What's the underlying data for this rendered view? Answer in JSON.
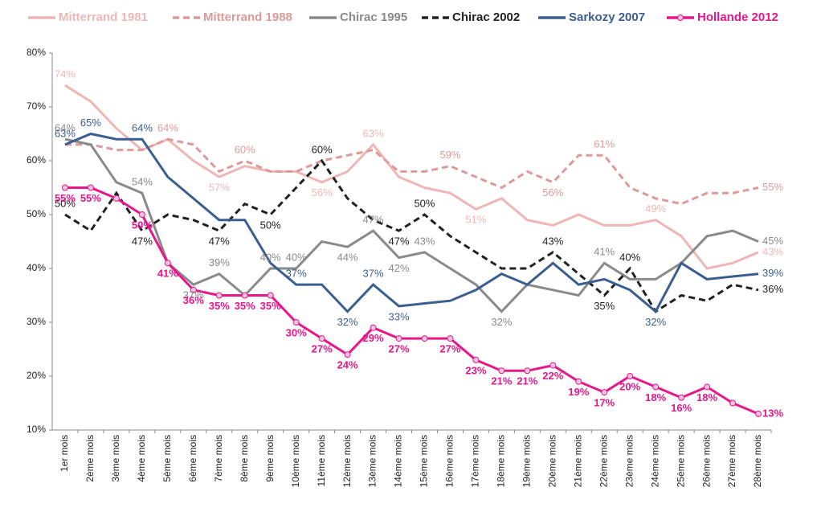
{
  "chart_data": {
    "type": "line",
    "categories": [
      "1er mois",
      "2ème mois",
      "3ème mois",
      "4ème mois",
      "5ème mois",
      "6ème mois",
      "7ème mois",
      "8ème mois",
      "9ème mois",
      "10ème mois",
      "11ème mois",
      "12ème mois",
      "13ème mois",
      "14ème mois",
      "15ème mois",
      "16ème mois",
      "17ème mois",
      "18ème mois",
      "19ème mois",
      "20ème mois",
      "21ème mois",
      "22ème mois",
      "23ème mois",
      "24ème mois",
      "25ème mois",
      "26ème mois",
      "27ème mois",
      "28ème mois"
    ],
    "ylim": [
      10,
      80
    ],
    "yticks": [
      {
        "value": 10,
        "label": "10%"
      },
      {
        "value": 20,
        "label": "20%"
      },
      {
        "value": 30,
        "label": "30%"
      },
      {
        "value": 40,
        "label": "40%"
      },
      {
        "value": 50,
        "label": "50%"
      },
      {
        "value": 60,
        "label": "60%"
      },
      {
        "value": 70,
        "label": "70%"
      },
      {
        "value": 80,
        "label": "80%"
      }
    ],
    "grid": false,
    "legend": "top",
    "series": [
      {
        "name": "Mitterrand 1981",
        "color": "#f0b6b6",
        "dashed": false,
        "values": [
          74,
          71,
          66,
          62,
          64,
          60,
          57,
          59,
          58,
          58,
          56,
          58,
          63,
          57,
          55,
          54,
          51,
          53,
          49,
          48,
          50,
          48,
          48,
          49,
          46,
          40,
          41,
          43
        ],
        "value_labels": [
          "74%",
          null,
          null,
          null,
          null,
          null,
          "57%",
          null,
          null,
          null,
          "56%",
          null,
          "63%",
          null,
          null,
          null,
          "51%",
          null,
          null,
          null,
          null,
          null,
          null,
          "49%",
          null,
          null,
          null,
          "43%"
        ]
      },
      {
        "name": "Mitterrand 1988",
        "color": "#de9a9a",
        "dashed": true,
        "values": [
          63,
          63,
          62,
          62,
          64,
          63,
          58,
          60,
          58,
          58,
          60,
          61,
          62,
          58,
          58,
          59,
          57,
          55,
          58,
          56,
          61,
          61,
          55,
          53,
          52,
          54,
          54,
          55
        ],
        "value_labels": [
          null,
          null,
          null,
          null,
          "64%",
          null,
          null,
          "60%",
          null,
          null,
          null,
          null,
          null,
          null,
          null,
          "59%",
          null,
          null,
          null,
          "56%",
          null,
          "61%",
          null,
          null,
          null,
          null,
          null,
          "55%"
        ]
      },
      {
        "name": "Chirac 1995",
        "color": "#8a8a8a",
        "dashed": false,
        "values": [
          64,
          63,
          56,
          54,
          41,
          37,
          39,
          35,
          40,
          40,
          45,
          44,
          47,
          42,
          43,
          40,
          37,
          32,
          37,
          36,
          35,
          41,
          38,
          38,
          41,
          46,
          47,
          45
        ],
        "value_labels": [
          "64%",
          null,
          null,
          "54%",
          null,
          "37%",
          "39%",
          null,
          "40%",
          "40%",
          null,
          "44%",
          "47%",
          "42%",
          "43%",
          null,
          null,
          "32%",
          null,
          null,
          null,
          "41%",
          null,
          null,
          null,
          null,
          null,
          "45%"
        ]
      },
      {
        "name": "Chirac 2002",
        "color": "#222222",
        "dashed": true,
        "values": [
          50,
          47,
          54,
          47,
          50,
          49,
          47,
          52,
          50,
          55,
          60,
          53,
          49,
          47,
          50,
          46,
          43,
          40,
          40,
          43,
          39,
          35,
          40,
          32,
          35,
          34,
          37,
          36
        ],
        "value_labels": [
          "50%",
          null,
          null,
          "47%",
          null,
          null,
          "47%",
          null,
          "50%",
          null,
          "60%",
          null,
          null,
          "47%",
          "50%",
          null,
          null,
          null,
          null,
          "43%",
          null,
          "35%",
          "40%",
          null,
          null,
          null,
          null,
          "36%"
        ]
      },
      {
        "name": "Sarkozy 2007",
        "color": "#3a5f8f",
        "dashed": false,
        "values": [
          63,
          65,
          64,
          64,
          57,
          53,
          49,
          49,
          41,
          37,
          37,
          32,
          37,
          33,
          33.5,
          34,
          36,
          39,
          37,
          41,
          37,
          38,
          36,
          32,
          41,
          38,
          38.5,
          39
        ],
        "value_labels": [
          "63%",
          "65%",
          null,
          "64%",
          null,
          null,
          null,
          null,
          null,
          "37%",
          null,
          "32%",
          "37%",
          "33%",
          null,
          null,
          null,
          null,
          null,
          null,
          null,
          null,
          null,
          "32%",
          null,
          null,
          null,
          "39%"
        ]
      },
      {
        "name": "Hollande 2012",
        "color": "#e8168c",
        "dashed": false,
        "marker": "circle",
        "values": [
          55,
          55,
          53,
          50,
          41,
          36,
          35,
          35,
          35,
          30,
          27,
          24,
          29,
          27,
          27,
          27,
          23,
          21,
          21,
          22,
          19,
          17,
          20,
          18,
          16,
          18,
          15,
          13
        ],
        "value_labels": [
          "55%",
          "55%",
          null,
          "50%",
          "41%",
          "36%",
          "35%",
          "35%",
          "35%",
          "30%",
          "27%",
          "24%",
          "29%",
          "27%",
          null,
          "27%",
          "23%",
          "21%",
          "21%",
          "22%",
          "19%",
          "17%",
          "20%",
          "18%",
          "16%",
          "18%",
          null,
          "13%"
        ]
      }
    ]
  }
}
